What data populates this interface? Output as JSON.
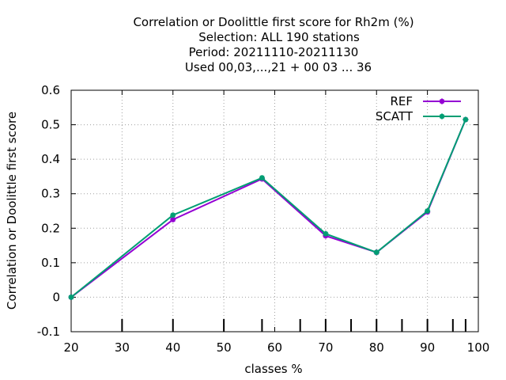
{
  "chart_data": {
    "type": "line",
    "title_lines": [
      "Correlation or Doolittle first score  for Rh2m (%)",
      "Selection: ALL    190 stations",
      "Period: 20211110-20211130",
      "Used  00,03,...,21  + 00 03 ... 36"
    ],
    "xlabel": "classes %",
    "ylabel": "Correlation or Doolittle first score",
    "xlim": [
      20,
      100
    ],
    "ylim": [
      -0.1,
      0.6
    ],
    "xticks": [
      20,
      30,
      40,
      50,
      60,
      70,
      80,
      90,
      100
    ],
    "xtick_labels": [
      "20",
      "30",
      "40",
      "50",
      "60",
      "70",
      "80",
      "90",
      "100"
    ],
    "yticks": [
      -0.1,
      0,
      0.1,
      0.2,
      0.3,
      0.4,
      0.5,
      0.6
    ],
    "ytick_labels": [
      "-0.1",
      "0",
      "0.1",
      "0.2",
      "0.3",
      "0.4",
      "0.5",
      "0.6"
    ],
    "bottom_class_markers": [
      30,
      40,
      50,
      57.5,
      65,
      70,
      75,
      80,
      85,
      90,
      95,
      97.5
    ],
    "grid": true,
    "legend_position": "top-right",
    "series": [
      {
        "name": "REF",
        "color": "#9400d3",
        "x": [
          20,
          40,
          57.5,
          70,
          80,
          90,
          97.5
        ],
        "y": [
          0.0,
          0.225,
          0.343,
          0.178,
          0.13,
          0.247,
          0.515
        ]
      },
      {
        "name": "SCATT",
        "color": "#009e73",
        "x": [
          20,
          40,
          57.5,
          70,
          80,
          90,
          97.5
        ],
        "y": [
          0.0,
          0.238,
          0.346,
          0.184,
          0.13,
          0.25,
          0.515
        ]
      }
    ]
  }
}
